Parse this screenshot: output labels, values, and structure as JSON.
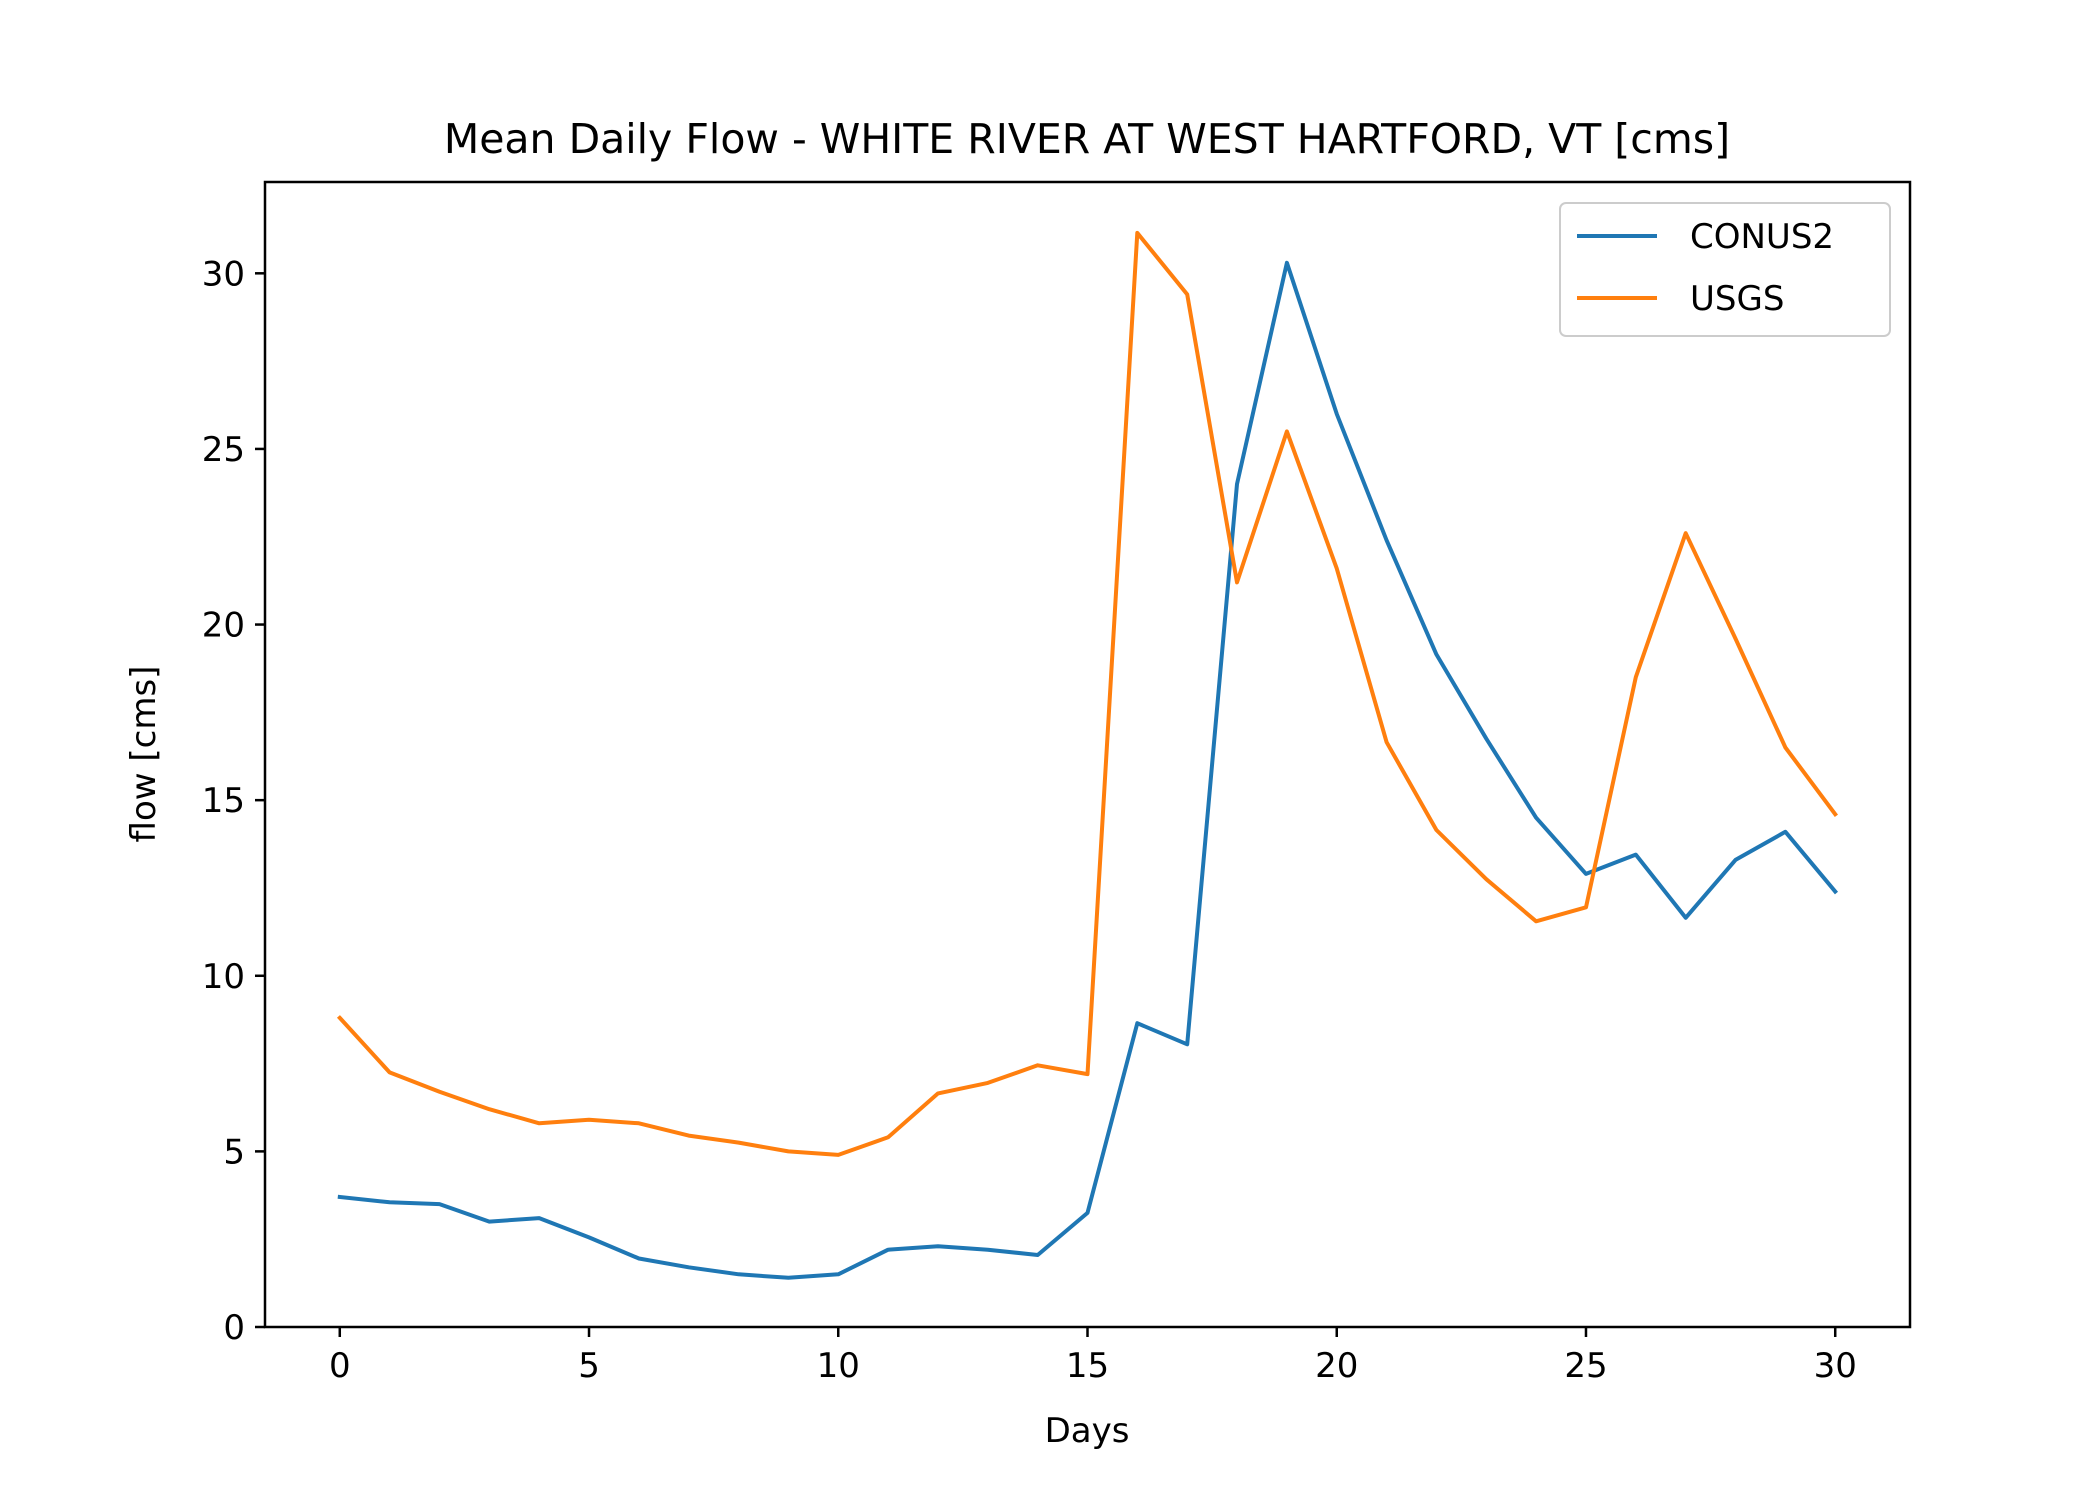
{
  "chart_data": {
    "type": "line",
    "title": "Mean Daily Flow - WHITE RIVER AT WEST HARTFORD, VT [cms]",
    "xlabel": "Days",
    "ylabel": "flow [cms]",
    "xlim": [
      -1.5,
      31.5
    ],
    "ylim": [
      0,
      32.6
    ],
    "grid": false,
    "legend_position": "top-right",
    "xticks": [
      0,
      5,
      10,
      15,
      20,
      25,
      30
    ],
    "yticks": [
      0,
      5,
      10,
      15,
      20,
      25,
      30
    ],
    "x": [
      0,
      1,
      2,
      3,
      4,
      5,
      6,
      7,
      8,
      9,
      10,
      11,
      12,
      13,
      14,
      15,
      16,
      17,
      18,
      19,
      20,
      21,
      22,
      23,
      24,
      25,
      26,
      27,
      28,
      29,
      30
    ],
    "series": [
      {
        "name": "CONUS2",
        "color": "#1f77b4",
        "values": [
          3.7,
          3.55,
          3.5,
          3.0,
          3.1,
          2.55,
          1.95,
          1.7,
          1.5,
          1.4,
          1.5,
          2.2,
          2.3,
          2.2,
          2.05,
          3.25,
          8.65,
          8.05,
          24.0,
          30.3,
          26.0,
          22.4,
          19.15,
          16.75,
          14.5,
          12.9,
          13.45,
          11.65,
          13.3,
          14.1,
          12.4
        ]
      },
      {
        "name": "USGS",
        "color": "#ff7f0e",
        "values": [
          8.8,
          7.25,
          6.7,
          6.2,
          5.8,
          5.9,
          5.8,
          5.45,
          5.25,
          5.0,
          4.9,
          5.4,
          6.65,
          6.95,
          7.45,
          7.2,
          31.15,
          29.4,
          21.2,
          25.5,
          21.6,
          16.65,
          14.15,
          12.75,
          11.55,
          11.95,
          18.5,
          22.6,
          19.6,
          16.5,
          14.6
        ]
      }
    ]
  }
}
